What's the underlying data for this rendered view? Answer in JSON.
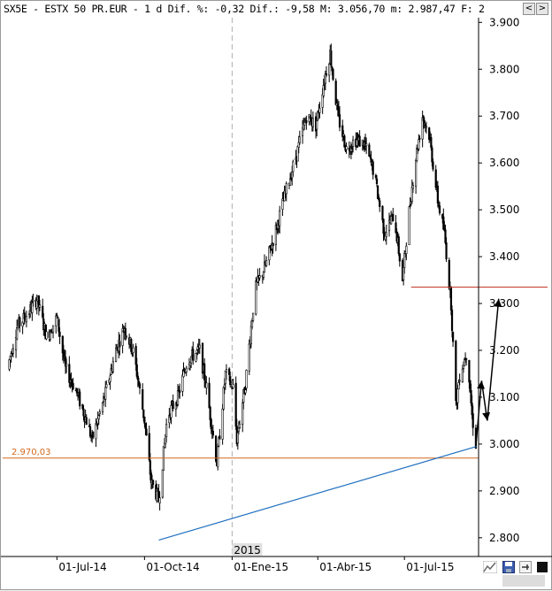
{
  "title": "SX5E - ESTX 50 PR.EUR -  1 d Dif. %: -0,32 Dif.: -9,58 M: 3.056,70 m: 2.987,47 F: 2",
  "window_buttons": {
    "left": "<",
    "right": ">"
  },
  "colors": {
    "candles": "#000000",
    "resistance_line": "#c0392b",
    "support_line": "#d2691e",
    "trend_line": "#1f6fc0",
    "grid_divider": "#b0b0b0",
    "label_background": "#e0e0e0"
  },
  "support_label": "2.970,03",
  "year_label": "2015",
  "toolbar_icons": [
    "chart-settings-icon",
    "save-icon",
    "pin-icon",
    "stop-icon"
  ],
  "chart_data": {
    "type": "candlestick",
    "title": "",
    "symbol": "SX5E - ESTX 50 PR.EUR",
    "x_tick_labels": [
      "01-Jul-14",
      "01-Oct-14",
      "01-Ene-15",
      "01-Abr-15",
      "01-Jul-15"
    ],
    "y_tick_labels": [
      "2.800",
      "2.900",
      "3.000",
      "3.100",
      "3.200",
      "3.300",
      "3.400",
      "3.500",
      "3.600",
      "3.700",
      "3.800",
      "3.900"
    ],
    "ylim": [
      2760,
      3910
    ],
    "x_range": [
      "2014-05-05",
      "2015-09-15"
    ],
    "grid": false,
    "series": [
      {
        "x": [
          "2014-05-10",
          "2014-05-20",
          "2014-06-01",
          "2014-06-10",
          "2014-06-20",
          "2014-07-01",
          "2014-07-10",
          "2014-07-20",
          "2014-08-01",
          "2014-08-07",
          "2014-08-20",
          "2014-09-01",
          "2014-09-10",
          "2014-09-20",
          "2014-10-01",
          "2014-10-08",
          "2014-10-16",
          "2014-10-25",
          "2014-11-05",
          "2014-11-15",
          "2014-11-28",
          "2014-12-05",
          "2014-12-16",
          "2014-12-25",
          "2015-01-02",
          "2015-01-06",
          "2015-01-15",
          "2015-01-25",
          "2015-02-05",
          "2015-02-15",
          "2015-02-28",
          "2015-03-10",
          "2015-03-20",
          "2015-03-30",
          "2015-04-08",
          "2015-04-14",
          "2015-04-22",
          "2015-05-01",
          "2015-05-10",
          "2015-05-20",
          "2015-05-30",
          "2015-06-10",
          "2015-06-20",
          "2015-06-29",
          "2015-07-05",
          "2015-07-12",
          "2015-07-20",
          "2015-07-27",
          "2015-08-05",
          "2015-08-12",
          "2015-08-19",
          "2015-08-24",
          "2015-08-28",
          "2015-09-05",
          "2015-09-10",
          "2015-09-14"
        ],
        "y": [
          3160,
          3250,
          3280,
          3310,
          3230,
          3270,
          3160,
          3120,
          3050,
          3010,
          3100,
          3200,
          3250,
          3190,
          3050,
          2920,
          2880,
          3060,
          3100,
          3180,
          3200,
          3120,
          2960,
          3150,
          3120,
          3010,
          3130,
          3330,
          3380,
          3450,
          3550,
          3620,
          3700,
          3680,
          3780,
          3835,
          3700,
          3630,
          3650,
          3640,
          3580,
          3450,
          3490,
          3350,
          3480,
          3600,
          3700,
          3660,
          3520,
          3450,
          3300,
          3080,
          3150,
          3200,
          3060,
          3000
        ],
        "series_type": "close"
      }
    ],
    "annotations": {
      "horizontal_lines": [
        {
          "value": 3335,
          "x_from": "2015-07-08",
          "x_to": "2015-09-18"
        },
        {
          "value": 2970.03,
          "label": "2.970,03"
        }
      ],
      "trend_line": {
        "from": {
          "x": "2014-10-16",
          "y": 2795
        },
        "to": {
          "x": "2015-09-15",
          "y": 2995
        }
      },
      "year_divider": {
        "x": "2015-01-01",
        "label": "2015"
      },
      "projection_arrows": [
        {
          "from": {
            "x": "2015-09-14",
            "y": 2995
          },
          "to": {
            "x": "2015-09-20",
            "y": 3135
          }
        },
        {
          "from": {
            "x": "2015-09-20",
            "y": 3135
          },
          "to": {
            "x": "2015-09-26",
            "y": 3050
          }
        },
        {
          "from": {
            "x": "2015-09-26",
            "y": 3050
          },
          "to": {
            "x": "2015-10-08",
            "y": 3310
          }
        }
      ]
    }
  }
}
